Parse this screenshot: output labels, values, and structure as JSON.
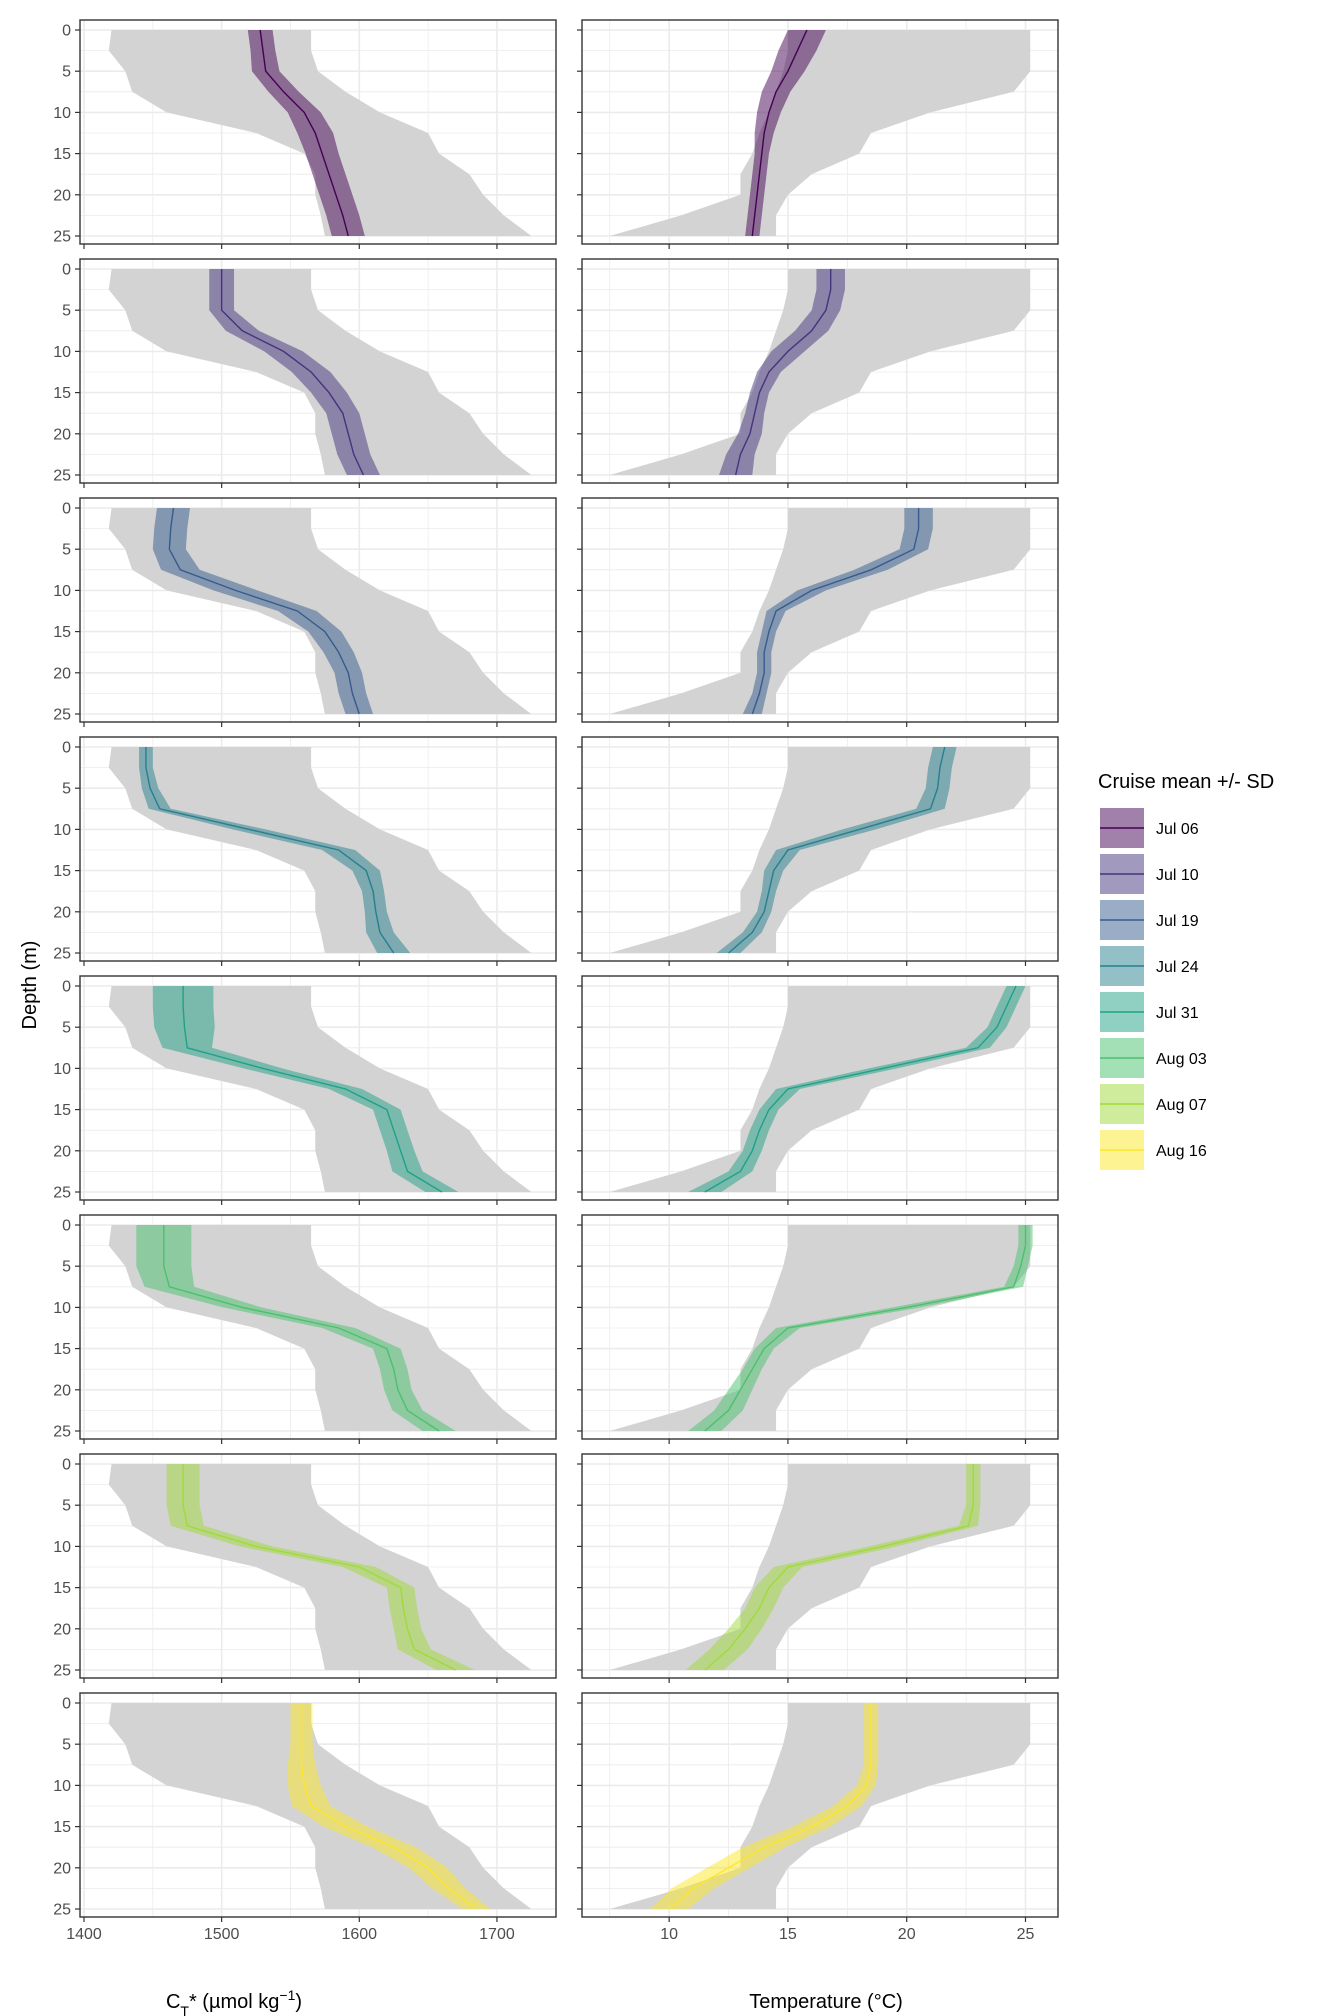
{
  "chart_data": {
    "type": "area",
    "layout": "faceted 8 rows x 2 columns, one row per cruise",
    "grid": true,
    "legend_position": "right",
    "y_axis": {
      "label": "Depth (m)",
      "ticks": [
        0,
        5,
        10,
        15,
        20,
        25
      ],
      "ylim": [
        0,
        25
      ],
      "reversed": true
    },
    "x_axes": [
      {
        "key": "ct",
        "label_main": "C",
        "label_sub": "T",
        "label_rest": "* (µmol kg",
        "label_sup": "−1",
        "label_end": ")",
        "ticks": [
          1400,
          1500,
          1600,
          1700
        ],
        "xlim": [
          1400,
          1740
        ]
      },
      {
        "key": "temp",
        "label": "Temperature (°C)",
        "ticks": [
          10,
          15,
          20,
          25
        ],
        "xlim": [
          6.5,
          26.2
        ]
      }
    ],
    "depths": [
      0,
      2.5,
      5,
      7.5,
      10,
      12.5,
      15,
      17.5,
      20,
      22.5,
      25
    ],
    "overall_range_ct": {
      "min": [
        1420,
        1418,
        1430,
        1435,
        1460,
        1525,
        1560,
        1568,
        1568,
        1572,
        1575
      ],
      "max": [
        1565,
        1565,
        1570,
        1590,
        1615,
        1650,
        1658,
        1680,
        1690,
        1705,
        1725
      ]
    },
    "overall_range_temp": {
      "min": [
        15.0,
        15.0,
        14.8,
        14.5,
        14.2,
        13.8,
        13.5,
        13.0,
        13.0,
        10.5,
        7.5
      ],
      "max": [
        25.2,
        25.2,
        25.2,
        24.5,
        21.0,
        18.5,
        18.0,
        16.0,
        15.0,
        14.5,
        14.5
      ]
    },
    "legend": {
      "title": "Cruise mean +/- SD"
    },
    "series": [
      {
        "name": "Jul 06",
        "color": "#440154",
        "ct_mean": [
          1528,
          1530,
          1532,
          1545,
          1560,
          1568,
          1573,
          1578,
          1583,
          1588,
          1592
        ],
        "ct_sd": [
          9,
          9,
          10,
          11,
          12,
          13,
          12,
          12,
          12,
          12,
          12
        ],
        "temp_mean": [
          15.8,
          15.4,
          15.0,
          14.5,
          14.2,
          14.0,
          13.9,
          13.8,
          13.7,
          13.6,
          13.5
        ],
        "temp_sd": [
          0.8,
          0.8,
          0.7,
          0.6,
          0.5,
          0.4,
          0.3,
          0.3,
          0.3,
          0.3,
          0.3
        ]
      },
      {
        "name": "Jul 10",
        "color": "#46337e",
        "ct_mean": [
          1500,
          1500,
          1500,
          1515,
          1545,
          1565,
          1578,
          1588,
          1592,
          1596,
          1603
        ],
        "ct_sd": [
          9,
          9,
          9,
          12,
          14,
          14,
          13,
          12,
          12,
          12,
          12
        ],
        "temp_mean": [
          16.8,
          16.8,
          16.6,
          16.0,
          15.0,
          14.2,
          13.8,
          13.6,
          13.4,
          13.0,
          12.8
        ],
        "temp_sd": [
          0.6,
          0.6,
          0.6,
          0.7,
          0.7,
          0.5,
          0.4,
          0.4,
          0.5,
          0.6,
          0.7
        ]
      },
      {
        "name": "Jul 19",
        "color": "#365c8d",
        "ct_mean": [
          1465,
          1463,
          1462,
          1470,
          1510,
          1555,
          1575,
          1585,
          1592,
          1595,
          1600
        ],
        "ct_sd": [
          12,
          12,
          12,
          14,
          16,
          14,
          12,
          11,
          10,
          10,
          10
        ],
        "temp_mean": [
          20.5,
          20.5,
          20.3,
          18.5,
          16.0,
          14.5,
          14.2,
          14.0,
          14.0,
          13.8,
          13.5
        ],
        "temp_sd": [
          0.6,
          0.6,
          0.6,
          0.7,
          0.6,
          0.4,
          0.3,
          0.3,
          0.3,
          0.3,
          0.4
        ]
      },
      {
        "name": "Jul 24",
        "color": "#277f8e",
        "ct_mean": [
          1445,
          1445,
          1448,
          1455,
          1520,
          1585,
          1605,
          1610,
          1612,
          1615,
          1625
        ],
        "ct_sd": [
          5,
          5,
          6,
          8,
          12,
          12,
          10,
          8,
          8,
          10,
          12
        ],
        "temp_mean": [
          21.6,
          21.4,
          21.3,
          21.0,
          18.0,
          15.0,
          14.4,
          14.2,
          14.0,
          13.5,
          12.5
        ],
        "temp_sd": [
          0.5,
          0.5,
          0.5,
          0.6,
          0.7,
          0.5,
          0.4,
          0.3,
          0.3,
          0.4,
          0.5
        ]
      },
      {
        "name": "Jul 31",
        "color": "#1fa187",
        "ct_mean": [
          1472,
          1472,
          1473,
          1475,
          1530,
          1590,
          1620,
          1625,
          1630,
          1635,
          1660
        ],
        "ct_sd": [
          22,
          22,
          22,
          18,
          14,
          12,
          10,
          10,
          10,
          11,
          12
        ],
        "temp_mean": [
          24.6,
          24.2,
          23.8,
          23.0,
          19.0,
          15.0,
          14.2,
          13.8,
          13.5,
          13.0,
          11.5
        ],
        "temp_sd": [
          0.4,
          0.4,
          0.4,
          0.5,
          0.6,
          0.5,
          0.4,
          0.4,
          0.4,
          0.5,
          0.7
        ]
      },
      {
        "name": "Aug 03",
        "color": "#4ac16d",
        "ct_mean": [
          1458,
          1458,
          1458,
          1462,
          1515,
          1585,
          1620,
          1625,
          1628,
          1635,
          1658
        ],
        "ct_sd": [
          20,
          20,
          20,
          18,
          14,
          12,
          10,
          10,
          10,
          11,
          12
        ],
        "temp_mean": [
          25.0,
          25.0,
          24.8,
          24.5,
          20.0,
          15.0,
          14.0,
          13.5,
          13.0,
          12.5,
          11.5
        ],
        "temp_sd": [
          0.3,
          0.3,
          0.3,
          0.4,
          0.6,
          0.5,
          0.4,
          0.4,
          0.5,
          0.6,
          0.7
        ]
      },
      {
        "name": "Aug 07",
        "color": "#a0da39",
        "ct_mean": [
          1472,
          1472,
          1472,
          1475,
          1525,
          1600,
          1630,
          1632,
          1635,
          1640,
          1670
        ],
        "ct_sd": [
          12,
          12,
          12,
          12,
          12,
          12,
          10,
          10,
          10,
          12,
          14
        ],
        "temp_mean": [
          22.8,
          22.8,
          22.8,
          22.6,
          19.0,
          15.0,
          14.2,
          13.8,
          13.2,
          12.5,
          11.5
        ],
        "temp_sd": [
          0.3,
          0.3,
          0.3,
          0.4,
          0.6,
          0.6,
          0.6,
          0.6,
          0.7,
          0.8,
          0.8
        ]
      },
      {
        "name": "Aug 16",
        "color": "#fde725",
        "ct_mean": [
          1558,
          1558,
          1558,
          1558,
          1560,
          1565,
          1590,
          1625,
          1650,
          1665,
          1685
        ],
        "ct_sd": [
          8,
          8,
          8,
          10,
          12,
          14,
          16,
          16,
          14,
          12,
          10
        ],
        "temp_mean": [
          18.5,
          18.5,
          18.5,
          18.5,
          18.3,
          17.5,
          16.0,
          14.0,
          12.5,
          11.0,
          10.0
        ],
        "temp_sd": [
          0.3,
          0.3,
          0.3,
          0.3,
          0.4,
          0.6,
          0.8,
          0.9,
          0.9,
          0.9,
          0.8
        ]
      }
    ]
  }
}
